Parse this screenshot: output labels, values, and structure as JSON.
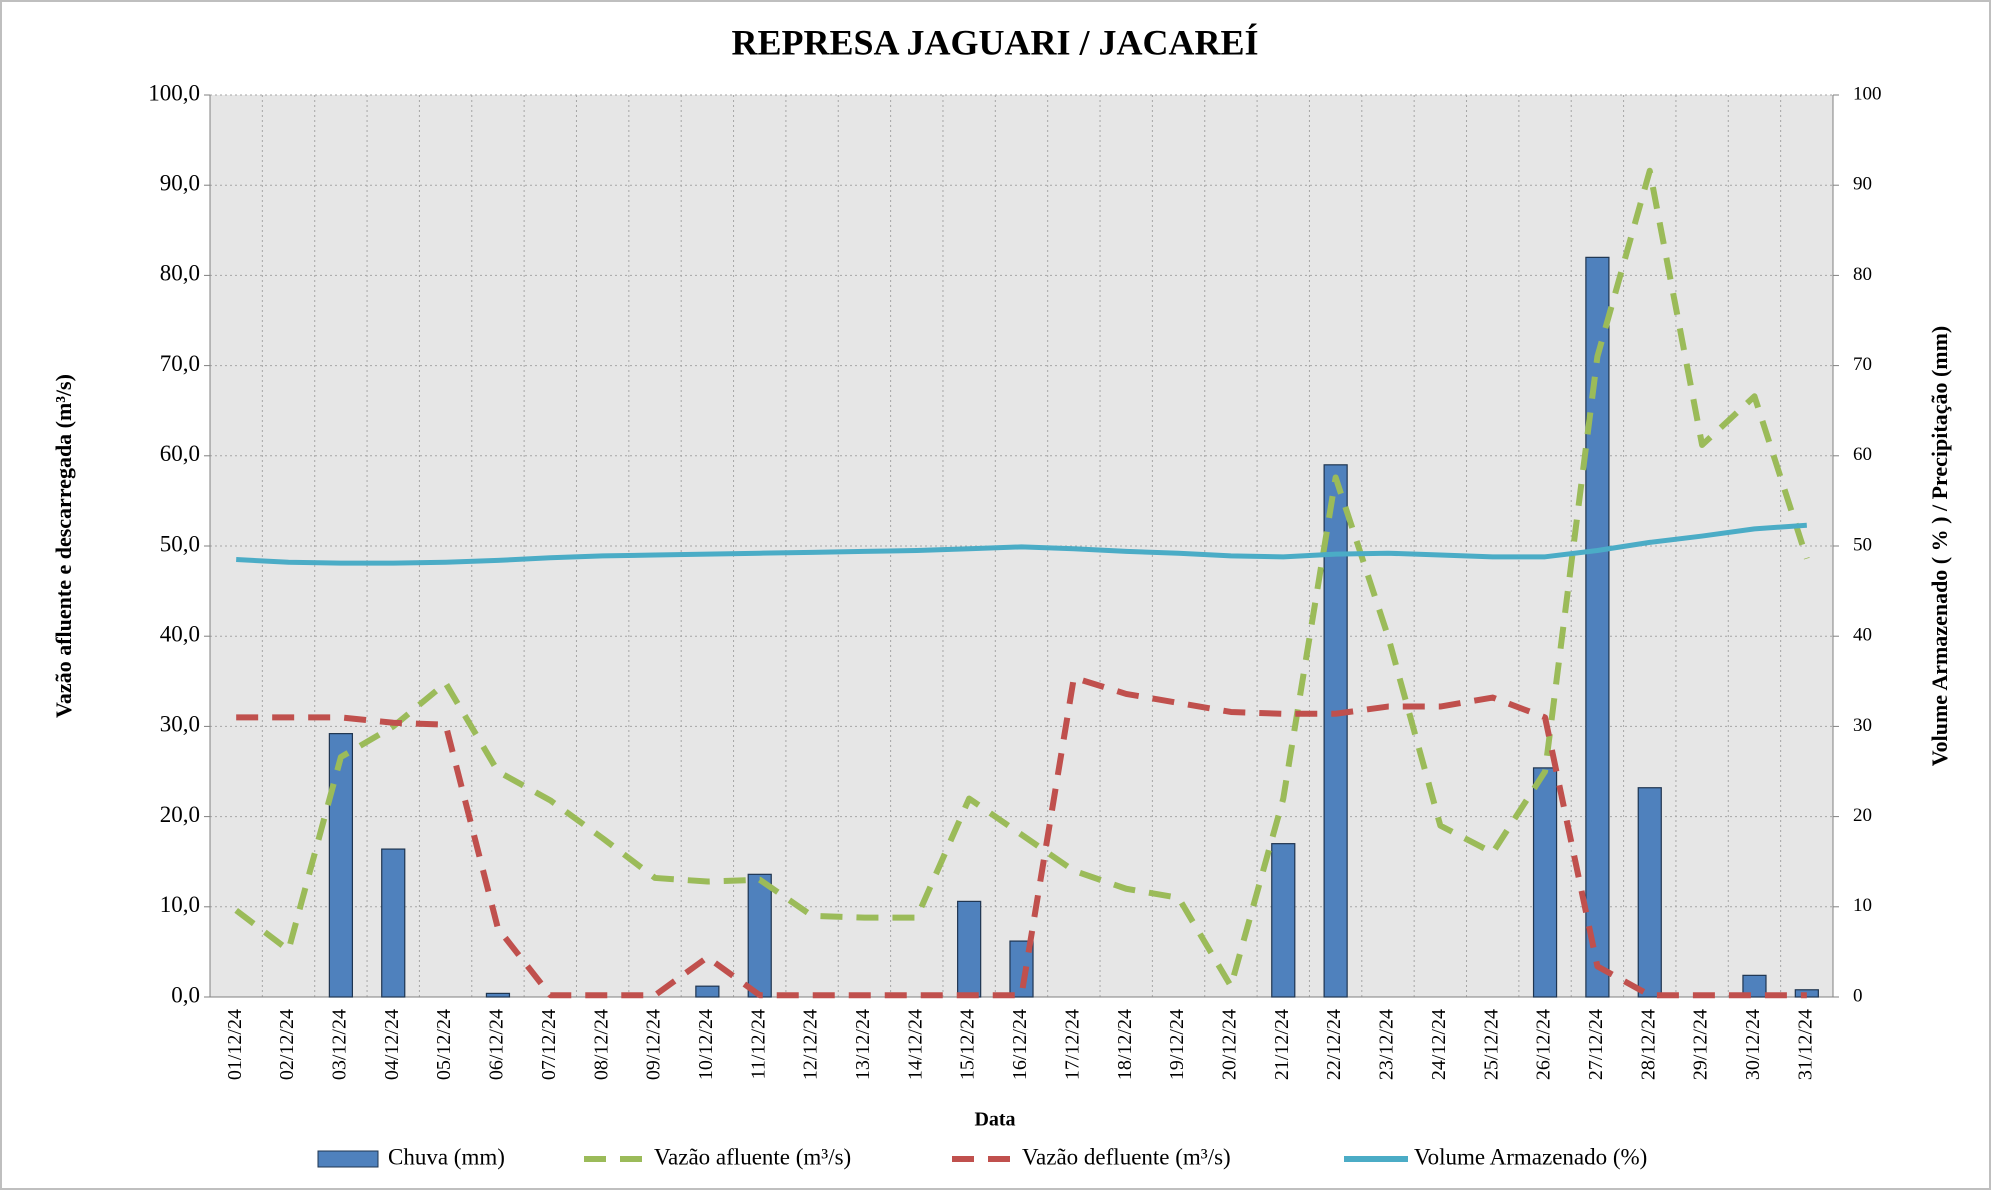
{
  "chart_data": {
    "type": "combo",
    "title": "REPRESA JAGUARI / JACAREÍ",
    "x_label": "Data",
    "y_label": "Vazão afluente e descarregada (m³/s)",
    "y2_label": "Volume Armazenado ( % ) / Precipitação  (mm)",
    "categories": [
      "01/12/24",
      "02/12/24",
      "03/12/24",
      "04/12/24",
      "05/12/24",
      "06/12/24",
      "07/12/24",
      "08/12/24",
      "09/12/24",
      "10/12/24",
      "11/12/24",
      "12/12/24",
      "13/12/24",
      "14/12/24",
      "15/12/24",
      "16/12/24",
      "17/12/24",
      "18/12/24",
      "19/12/24",
      "20/12/24",
      "21/12/24",
      "22/12/24",
      "23/12/24",
      "24/12/24",
      "25/12/24",
      "26/12/24",
      "27/12/24",
      "28/12/24",
      "29/12/24",
      "30/12/24",
      "31/12/24"
    ],
    "ylim": [
      0,
      100
    ],
    "yticks": [
      {
        "value": 0,
        "label": "0,0"
      },
      {
        "value": 10,
        "label": "10,0"
      },
      {
        "value": 20,
        "label": "20,0"
      },
      {
        "value": 30,
        "label": "30,0"
      },
      {
        "value": 40,
        "label": "40,0"
      },
      {
        "value": 50,
        "label": "50,0"
      },
      {
        "value": 60,
        "label": "60,0"
      },
      {
        "value": 70,
        "label": "70,0"
      },
      {
        "value": 80,
        "label": "80,0"
      },
      {
        "value": 90,
        "label": "90,0"
      },
      {
        "value": 100,
        "label": "100,0"
      }
    ],
    "y2lim": [
      0,
      100
    ],
    "y2ticks": [
      0,
      10,
      20,
      30,
      40,
      50,
      60,
      70,
      80,
      90,
      100
    ],
    "grid": true,
    "series": [
      {
        "name": "Chuva (mm)",
        "type": "bar",
        "axis": "y2",
        "color": "#4f81bd",
        "values": [
          0,
          0,
          29.2,
          16.4,
          0,
          0.4,
          0,
          0,
          0,
          1.2,
          13.6,
          0,
          0,
          0,
          10.6,
          6.2,
          0,
          0,
          0,
          0,
          17,
          59,
          0,
          0,
          0,
          25.4,
          82,
          23.2,
          0,
          2.4,
          0.8
        ]
      },
      {
        "name": "Vazão afluente (m³/s)",
        "type": "line",
        "dashed": true,
        "color": "#9bbb59",
        "values": [
          9.6,
          5.2,
          26.6,
          30,
          34.8,
          25,
          21.8,
          17.6,
          13.2,
          12.8,
          13,
          9,
          8.8,
          8.8,
          22,
          18,
          14,
          12,
          11,
          1.2,
          22,
          57.6,
          40,
          19,
          16,
          25,
          71,
          91.6,
          61.2,
          66.6,
          48.6
        ]
      },
      {
        "name": "Vazão defluente (m³/s)",
        "type": "line",
        "dashed": true,
        "color": "#c0504d",
        "values": [
          31,
          31,
          31,
          30.4,
          30.2,
          7.6,
          0.2,
          0.2,
          0.2,
          4.4,
          0.2,
          0.2,
          0.2,
          0.2,
          0.2,
          0.2,
          35.4,
          33.6,
          32.6,
          31.6,
          31.4,
          31.4,
          32.2,
          32.2,
          33.2,
          31,
          3.4,
          0.2,
          0.2,
          0.2,
          0.2
        ]
      },
      {
        "name": "Volume Armazenado (%)",
        "type": "line",
        "axis": "y2",
        "dashed": false,
        "color": "#4bacc6",
        "values": [
          48.5,
          48.2,
          48.1,
          48.1,
          48.2,
          48.4,
          48.7,
          48.9,
          49,
          49.1,
          49.2,
          49.3,
          49.4,
          49.5,
          49.7,
          49.9,
          49.7,
          49.4,
          49.2,
          48.9,
          48.8,
          49.1,
          49.2,
          49,
          48.8,
          48.8,
          49.5,
          50.4,
          51.1,
          51.9,
          52.3
        ]
      }
    ]
  }
}
